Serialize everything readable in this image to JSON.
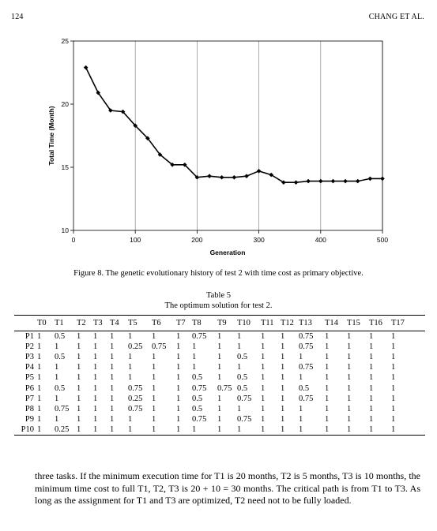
{
  "header": {
    "page_number": "124",
    "running_title": "CHANG ET AL."
  },
  "chart_data": {
    "type": "line",
    "xlabel": "Generation",
    "ylabel": "Total Time (Month)",
    "xlim": [
      0,
      500
    ],
    "ylim": [
      10,
      25
    ],
    "x_ticks": [
      "0",
      "100",
      "200",
      "300",
      "400",
      "500"
    ],
    "y_ticks": [
      "10",
      "15",
      "20",
      "25"
    ],
    "grid": "vertical lines at 200, 300, 400, 500",
    "line_color": "#000000",
    "marker": "diamond",
    "series": [
      {
        "x": [
          20,
          40,
          60,
          80,
          100,
          120,
          140,
          160,
          180,
          200,
          220,
          240,
          260,
          280,
          300,
          320,
          340,
          360,
          380,
          400,
          420,
          440,
          460,
          480,
          500
        ],
        "values": [
          22.9,
          20.9,
          19.5,
          19.4,
          18.3,
          17.3,
          16.0,
          15.2,
          15.2,
          14.2,
          14.3,
          14.2,
          14.2,
          14.3,
          14.7,
          14.4,
          13.8,
          13.8,
          13.9,
          13.9,
          13.9,
          13.9,
          13.9,
          14.1,
          14.1
        ]
      }
    ]
  },
  "figure_caption": "Figure 8. The genetic evolutionary history of test 2 with time cost as primary objective.",
  "table": {
    "label": "Table 5",
    "title": "The optimum solution for test 2.",
    "columns": [
      "",
      "T0",
      "T1",
      "T2",
      "T3",
      "T4",
      "T5",
      "T6",
      "T7",
      "T8",
      "T9",
      "T10",
      "T11",
      "T12",
      "T13",
      "T14",
      "T15",
      "T16",
      "T17"
    ],
    "rows": [
      [
        "P1",
        "1",
        "0.5",
        "1",
        "1",
        "1",
        "1",
        "1",
        "1",
        "0.75",
        "1",
        "1",
        "1",
        "1",
        "0.75",
        "1",
        "1",
        "1",
        "1"
      ],
      [
        "P2",
        "1",
        "1",
        "1",
        "1",
        "1",
        "0.25",
        "0.75",
        "1",
        "1",
        "1",
        "1",
        "1",
        "1",
        "0.75",
        "1",
        "1",
        "1",
        "1"
      ],
      [
        "P3",
        "1",
        "0.5",
        "1",
        "1",
        "1",
        "1",
        "1",
        "1",
        "1",
        "1",
        "0.5",
        "1",
        "1",
        "1",
        "1",
        "1",
        "1",
        "1"
      ],
      [
        "P4",
        "1",
        "1",
        "1",
        "1",
        "1",
        "1",
        "1",
        "1",
        "1",
        "1",
        "1",
        "1",
        "1",
        "0.75",
        "1",
        "1",
        "1",
        "1"
      ],
      [
        "P5",
        "1",
        "1",
        "1",
        "1",
        "1",
        "1",
        "1",
        "1",
        "0.5",
        "1",
        "0.5",
        "1",
        "1",
        "1",
        "1",
        "1",
        "1",
        "1"
      ],
      [
        "P6",
        "1",
        "0.5",
        "1",
        "1",
        "1",
        "0.75",
        "1",
        "1",
        "0.75",
        "0.75",
        "0.5",
        "1",
        "1",
        "0.5",
        "1",
        "1",
        "1",
        "1"
      ],
      [
        "P7",
        "1",
        "1",
        "1",
        "1",
        "1",
        "0.25",
        "1",
        "1",
        "0.5",
        "1",
        "0.75",
        "1",
        "1",
        "0.75",
        "1",
        "1",
        "1",
        "1"
      ],
      [
        "P8",
        "1",
        "0.75",
        "1",
        "1",
        "1",
        "0.75",
        "1",
        "1",
        "0.5",
        "1",
        "1",
        "1",
        "1",
        "1",
        "1",
        "1",
        "1",
        "1"
      ],
      [
        "P9",
        "1",
        "1",
        "1",
        "1",
        "1",
        "1",
        "1",
        "1",
        "0.75",
        "1",
        "0.75",
        "1",
        "1",
        "1",
        "1",
        "1",
        "1",
        "1"
      ],
      [
        "P10",
        "1",
        "0.25",
        "1",
        "1",
        "1",
        "1",
        "1",
        "1",
        "1",
        "1",
        "1",
        "1",
        "1",
        "1",
        "1",
        "1",
        "1",
        "1"
      ]
    ]
  },
  "body_text": "three tasks. If the minimum execution time for T1 is 20 months, T2 is 5 months, T3 is 10 months, the minimum time cost to full T1, T2, T3 is 20 + 10 = 30 months. The critical path is from T1 to T3. As long as the assignment for T1 and T3 are optimized, T2 need not to be fully loaded."
}
